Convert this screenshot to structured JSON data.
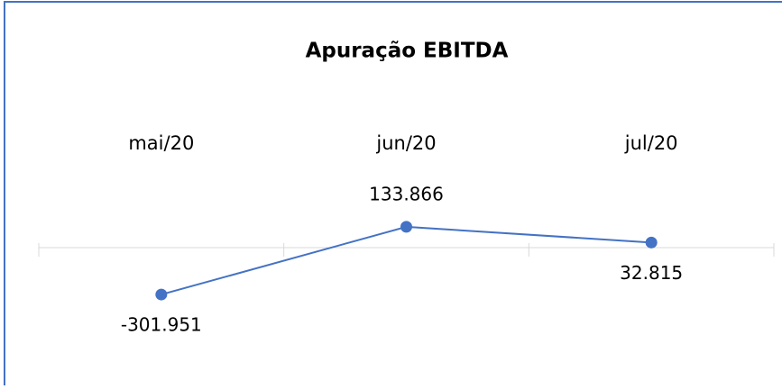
{
  "chart_data": {
    "type": "line",
    "title": "Apuração EBITDA",
    "categories": [
      "mai/20",
      "jun/20",
      "jul/20"
    ],
    "series": [
      {
        "name": "EBITDA",
        "color": "#4472c4",
        "values": [
          -301951,
          133866,
          32815
        ],
        "value_labels": [
          "-301.951",
          "133.866",
          "32.815"
        ]
      }
    ],
    "ylim": [
      -800000,
      800000
    ]
  }
}
